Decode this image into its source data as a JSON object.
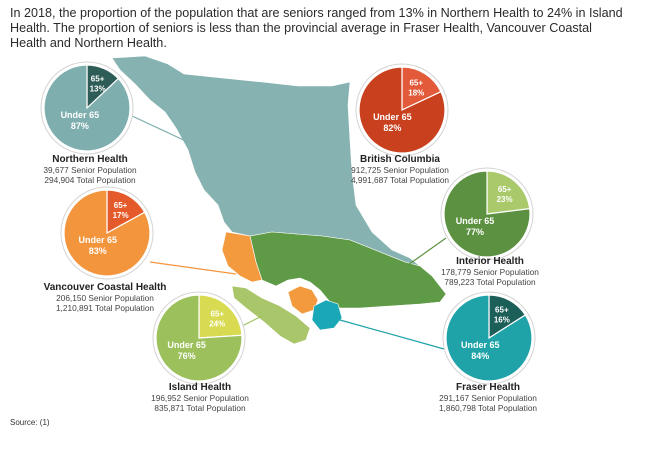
{
  "title": "In 2018, the proportion of the population that are seniors ranged from 13% in Northern Health to 24% in Island Health. The proportion of seniors is less than the provincial average in Fraser Health, Vancouver Coastal Health and Northern Health.",
  "source": "Source: (1)",
  "chart_data": {
    "type": "pie",
    "series": [
      {
        "id": "northern",
        "name": "Northern Health",
        "senior_population": "39,677 Senior Population",
        "total_population": "294,904 Total Population",
        "slices": [
          {
            "label": "65+",
            "pct_label": "13%",
            "value": 13,
            "color": "#2e5c56"
          },
          {
            "label": "Under 65",
            "pct_label": "87%",
            "value": 87,
            "color": "#7eaeae"
          }
        ]
      },
      {
        "id": "bc",
        "name": "British Columbia",
        "senior_population": "912,725 Senior Population",
        "total_population": "4,991,687 Total Population",
        "slices": [
          {
            "label": "65+",
            "pct_label": "18%",
            "value": 18,
            "color": "#e35a3a"
          },
          {
            "label": "Under 65",
            "pct_label": "82%",
            "value": 82,
            "color": "#c9401e"
          }
        ]
      },
      {
        "id": "coastal",
        "name": "Vancouver Coastal Health",
        "senior_population": "206,150 Senior Population",
        "total_population": "1,210,891 Total Population",
        "slices": [
          {
            "label": "65+",
            "pct_label": "17%",
            "value": 17,
            "color": "#e55a2b"
          },
          {
            "label": "Under 65",
            "pct_label": "83%",
            "value": 83,
            "color": "#f3953d"
          }
        ]
      },
      {
        "id": "interior",
        "name": "Interior Health",
        "senior_population": "178,779 Senior Population",
        "total_population": "789,223 Total Population",
        "slices": [
          {
            "label": "65+",
            "pct_label": "23%",
            "value": 23,
            "color": "#a9c96b"
          },
          {
            "label": "Under 65",
            "pct_label": "77%",
            "value": 77,
            "color": "#5b9140"
          }
        ]
      },
      {
        "id": "island",
        "name": "Island Health",
        "senior_population": "196,952 Senior Population",
        "total_population": "835,871 Total Population",
        "slices": [
          {
            "label": "65+",
            "pct_label": "24%",
            "value": 24,
            "color": "#d8db52"
          },
          {
            "label": "Under 65",
            "pct_label": "76%",
            "value": 76,
            "color": "#9cc05c"
          }
        ]
      },
      {
        "id": "fraser",
        "name": "Fraser Health",
        "senior_population": "291,167 Senior Population",
        "total_population": "1,860,798 Total Population",
        "slices": [
          {
            "label": "65+",
            "pct_label": "16%",
            "value": 16,
            "color": "#1c5e58"
          },
          {
            "label": "Under 65",
            "pct_label": "84%",
            "value": 84,
            "color": "#1fa3a8"
          }
        ]
      }
    ],
    "map_region_colors": {
      "northern": "#86b3b1",
      "interior": "#5f9a46",
      "coastal": "#f39a3e",
      "island": "#a9c76a",
      "fraser": "#1aa7b6"
    }
  }
}
